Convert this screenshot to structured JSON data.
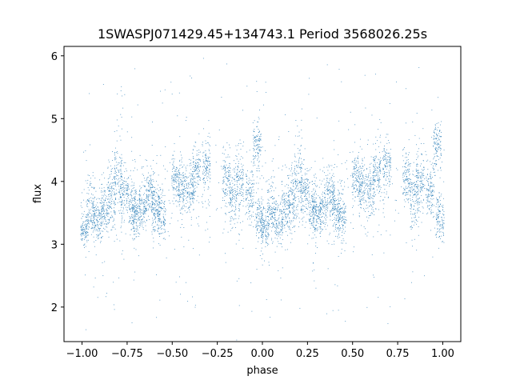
{
  "chart_data": {
    "type": "scatter",
    "title": "1SWASPJ071429.45+134743.1 Period 3568026.25s",
    "xlabel": "phase",
    "ylabel": "flux",
    "xlim": [
      -1.1,
      1.1
    ],
    "ylim": [
      1.45,
      6.15
    ],
    "xticks": [
      -1.0,
      -0.75,
      -0.5,
      -0.25,
      0.0,
      0.25,
      0.5,
      0.75,
      1.0
    ],
    "xtick_labels": [
      "−1.00",
      "−0.75",
      "−0.50",
      "−0.25",
      "0.00",
      "0.25",
      "0.50",
      "0.75",
      "1.00"
    ],
    "yticks": [
      2,
      3,
      4,
      5,
      6
    ],
    "ytick_labels": [
      "2",
      "3",
      "4",
      "5",
      "6"
    ],
    "grid": false,
    "marker_color": "#1f77b4",
    "clusters_period_half": [
      {
        "phase": 0.015,
        "center": 3.25,
        "spread": 0.25
      },
      {
        "phase": 0.05,
        "center": 3.55,
        "spread": 0.35
      },
      {
        "phase": 0.09,
        "center": 3.35,
        "spread": 0.3
      },
      {
        "phase": 0.13,
        "center": 3.55,
        "spread": 0.3
      },
      {
        "phase": 0.165,
        "center": 3.75,
        "spread": 0.4
      },
      {
        "phase": 0.2,
        "center": 4.05,
        "spread": 0.5
      },
      {
        "phase": 0.235,
        "center": 3.8,
        "spread": 0.35
      },
      {
        "phase": 0.28,
        "center": 3.6,
        "spread": 0.35
      },
      {
        "phase": 0.3,
        "center": 3.45,
        "spread": 0.3
      },
      {
        "phase": 0.34,
        "center": 3.6,
        "spread": 0.3
      },
      {
        "phase": 0.38,
        "center": 3.8,
        "spread": 0.3
      },
      {
        "phase": 0.41,
        "center": 3.55,
        "spread": 0.3
      },
      {
        "phase": 0.44,
        "center": 3.45,
        "spread": 0.3
      },
      {
        "phase": 0.52,
        "center": 4.05,
        "spread": 0.3
      },
      {
        "phase": 0.555,
        "center": 3.9,
        "spread": 0.35
      },
      {
        "phase": 0.6,
        "center": 3.85,
        "spread": 0.3
      },
      {
        "phase": 0.635,
        "center": 4.15,
        "spread": 0.3
      },
      {
        "phase": 0.69,
        "center": 4.25,
        "spread": 0.35
      },
      {
        "phase": 0.8,
        "center": 4.05,
        "spread": 0.35
      },
      {
        "phase": 0.84,
        "center": 3.75,
        "spread": 0.4
      },
      {
        "phase": 0.875,
        "center": 4.0,
        "spread": 0.4
      },
      {
        "phase": 0.93,
        "center": 3.8,
        "spread": 0.35
      },
      {
        "phase": 0.97,
        "center": 4.6,
        "spread": 0.3
      },
      {
        "phase": 0.985,
        "center": 3.4,
        "spread": 0.3
      }
    ]
  }
}
